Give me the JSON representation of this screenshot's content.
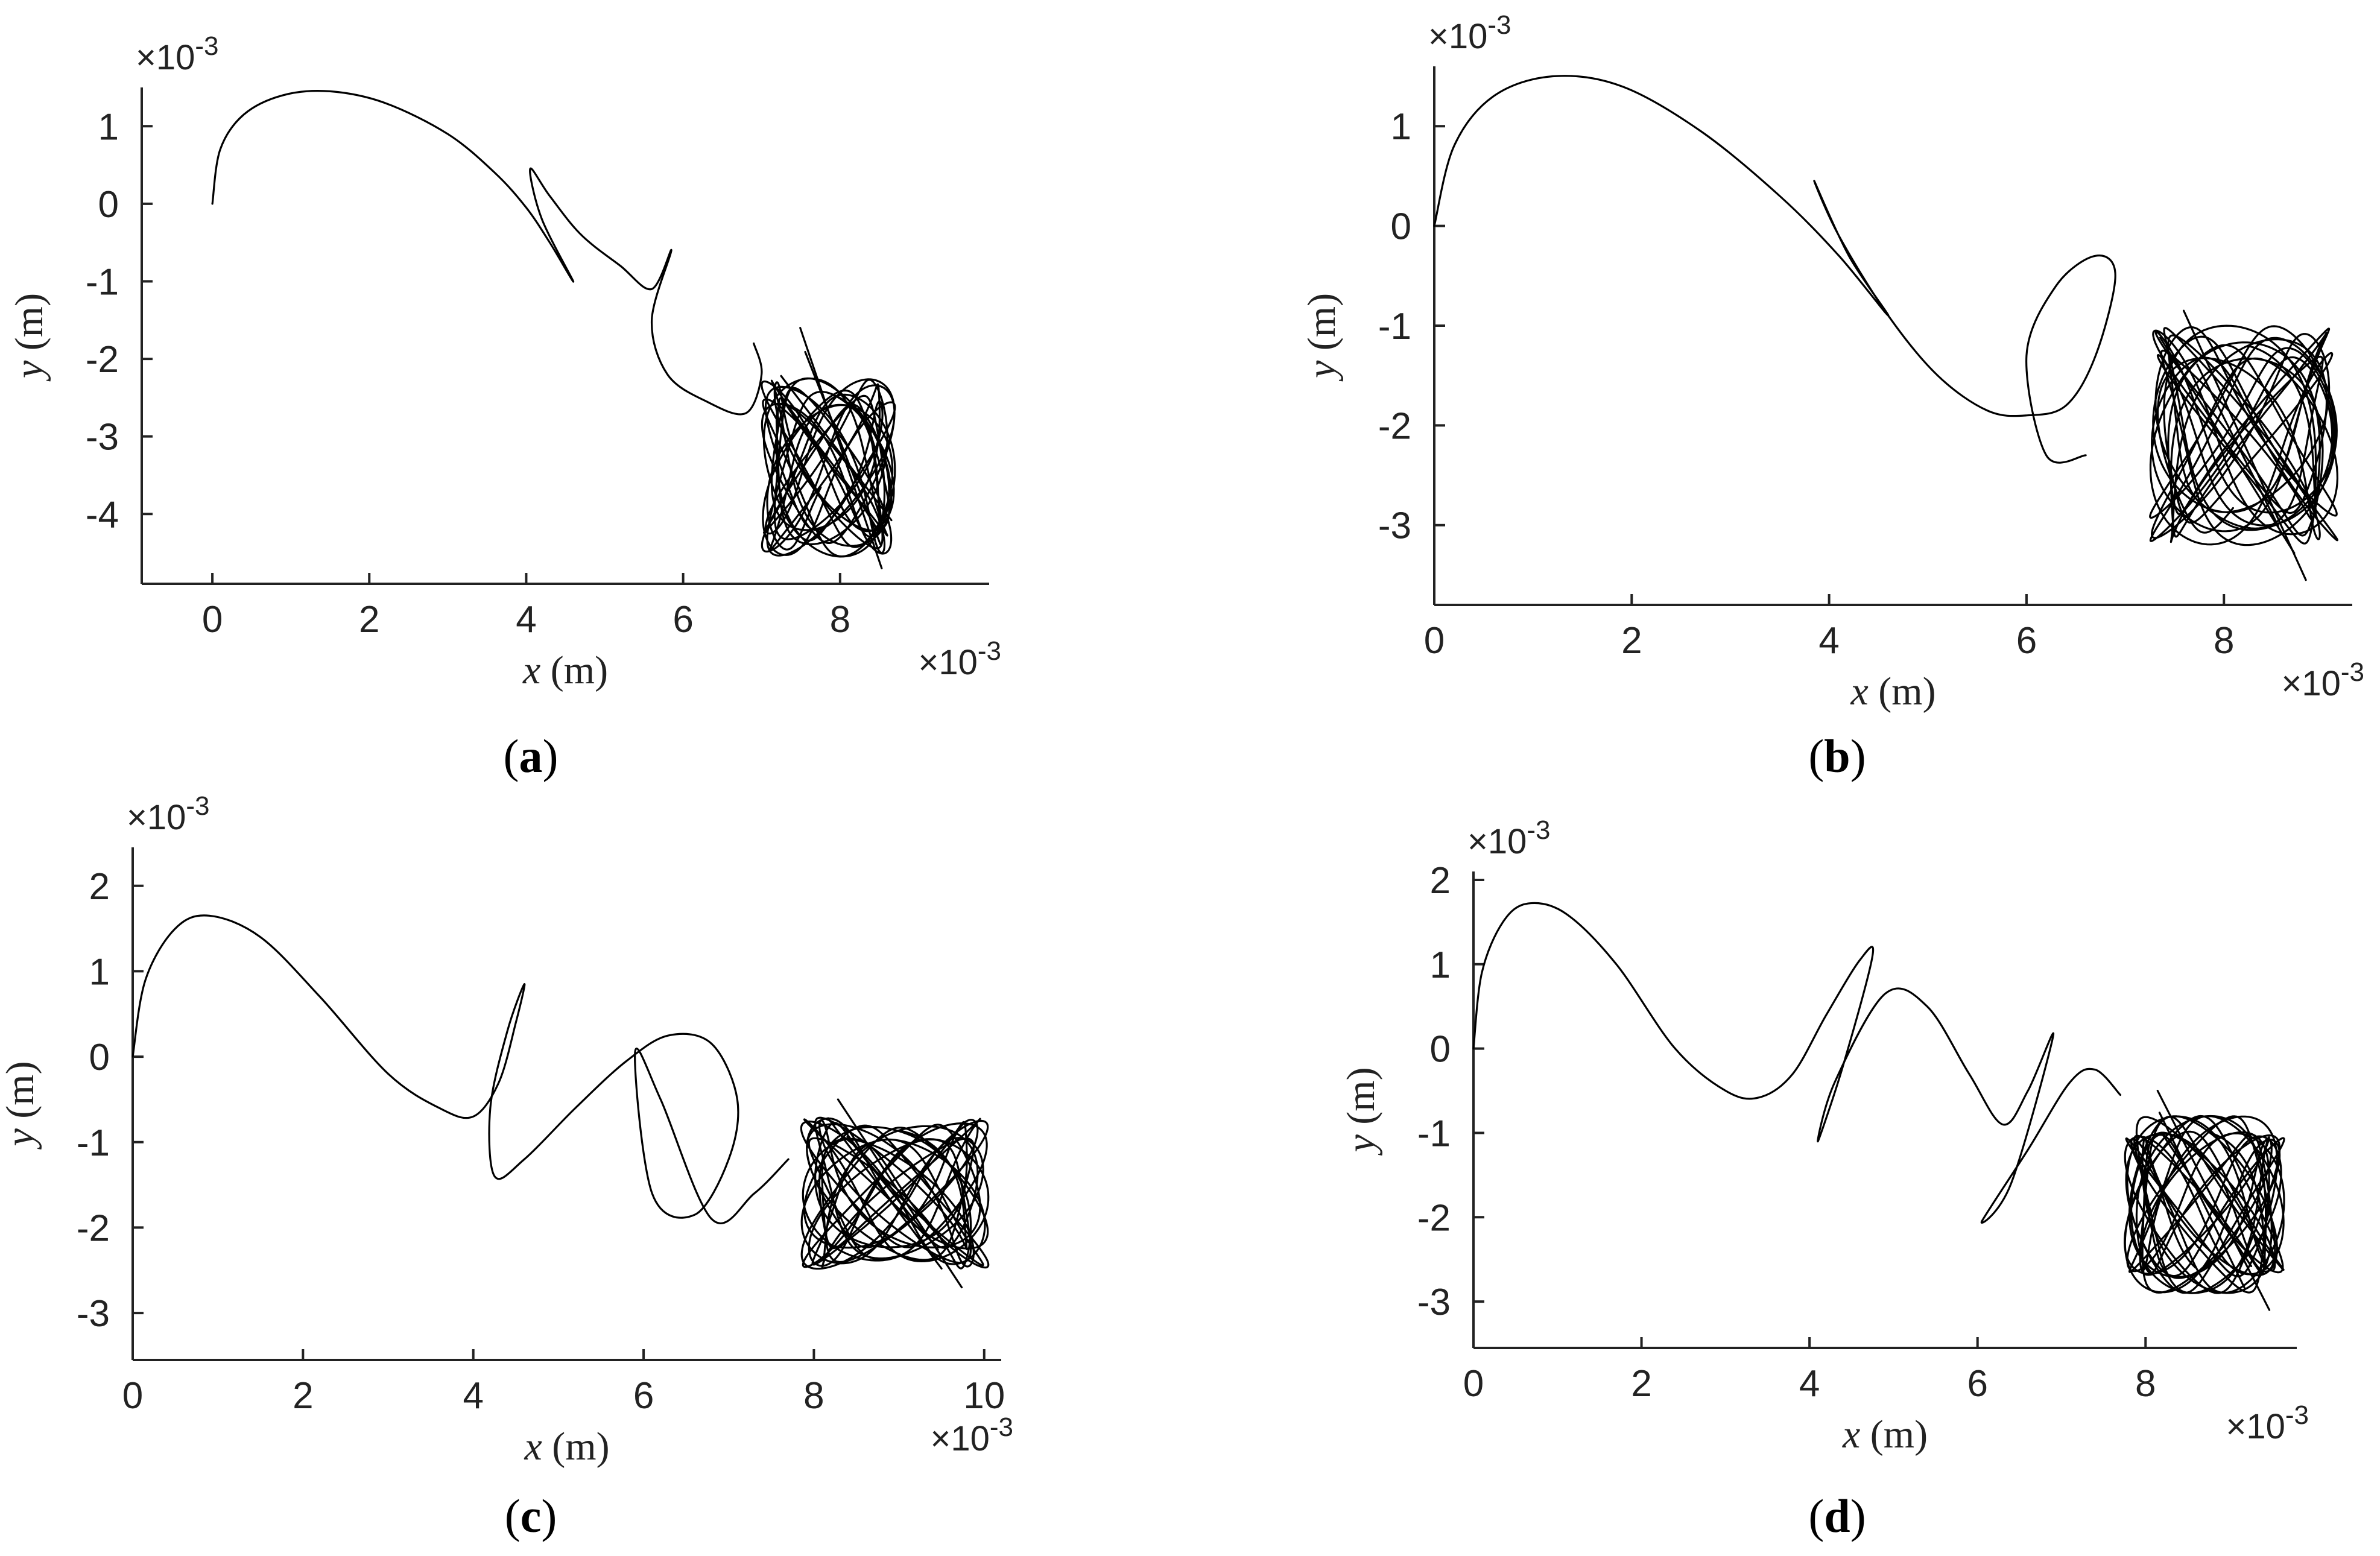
{
  "chart_data": [
    {
      "type": "line",
      "panel": "a",
      "caption_letter": "a",
      "xlabel_var": "x",
      "xlabel_unit": "(m)",
      "ylabel_var": "y",
      "ylabel_unit": "(m)",
      "x_exponent": "×10-3",
      "y_exponent": "×10-3",
      "x_scale": 0.001,
      "y_scale": 0.001,
      "xlim": [
        -0.9,
        9.9
      ],
      "ylim": [
        -4.9,
        1.5
      ],
      "xticks": [
        0,
        2,
        4,
        6,
        8
      ],
      "yticks": [
        1,
        0,
        -1,
        -2,
        -3,
        -4
      ],
      "series": [
        {
          "path_x": [
            0,
            0.1,
            0.4,
            0.9,
            1.5,
            2.2,
            3.0,
            3.6,
            4.0,
            4.3,
            4.6,
            4.2,
            4.05,
            4.3,
            4.7,
            5.2,
            5.6,
            5.85,
            5.6,
            5.8,
            6.3,
            6.8,
            7.0,
            6.9
          ],
          "path_y": [
            0,
            0.7,
            1.15,
            1.4,
            1.45,
            1.3,
            0.9,
            0.4,
            -0.05,
            -0.5,
            -1.0,
            -0.2,
            0.45,
            0.1,
            -0.4,
            -0.8,
            -1.1,
            -0.6,
            -1.5,
            -2.2,
            -2.55,
            -2.7,
            -2.2,
            -1.8
          ],
          "attractor": {
            "cx": 7.85,
            "cy": -3.4,
            "rx": 0.85,
            "ry": 1.15,
            "x_min": 6.9,
            "x_max": 8.9,
            "y_min": -4.7,
            "y_max": -1.6
          }
        }
      ]
    },
    {
      "type": "line",
      "panel": "b",
      "caption_letter": "b",
      "xlabel_var": "x",
      "xlabel_unit": "(m)",
      "ylabel_var": "y",
      "ylabel_unit": "(m)",
      "x_exponent": "×10-3",
      "y_exponent": "×10-3",
      "x_scale": 0.001,
      "y_scale": 0.001,
      "xlim": [
        0,
        9.3
      ],
      "ylim": [
        -3.8,
        1.6
      ],
      "xticks": [
        0,
        2,
        4,
        6,
        8
      ],
      "yticks": [
        1,
        0,
        -1,
        -2,
        -3
      ],
      "series": [
        {
          "path_x": [
            0,
            0.2,
            0.6,
            1.2,
            1.9,
            2.7,
            3.5,
            4.1,
            4.6,
            4.2,
            3.85,
            4.1,
            4.6,
            5.1,
            5.6,
            6.0,
            6.4,
            6.7,
            6.9,
            6.7,
            6.3,
            6.0,
            6.2,
            6.6
          ],
          "path_y": [
            0,
            0.8,
            1.3,
            1.5,
            1.4,
            0.95,
            0.3,
            -0.3,
            -0.9,
            -0.3,
            0.45,
            -0.1,
            -0.9,
            -1.5,
            -1.85,
            -1.9,
            -1.8,
            -1.3,
            -0.5,
            -0.3,
            -0.6,
            -1.3,
            -2.3,
            -2.3
          ],
          "attractor": {
            "cx": 8.2,
            "cy": -2.1,
            "rx": 0.95,
            "ry": 1.1,
            "x_min": 7.0,
            "x_max": 9.2,
            "y_min": -3.55,
            "y_max": -0.85
          }
        }
      ]
    },
    {
      "type": "line",
      "panel": "c",
      "caption_letter": "c",
      "xlabel_var": "x",
      "xlabel_unit": "(m)",
      "ylabel_var": "y",
      "ylabel_unit": "(m)",
      "x_exponent": "×10-3",
      "y_exponent": "×10-3",
      "x_scale": 0.001,
      "y_scale": 0.001,
      "xlim": [
        0,
        10.2
      ],
      "ylim": [
        -3.55,
        2.45
      ],
      "xticks": [
        0,
        2,
        4,
        6,
        8,
        10
      ],
      "yticks": [
        2,
        1,
        0,
        -1,
        -2,
        -3
      ],
      "series": [
        {
          "path_x": [
            0,
            0.15,
            0.5,
            0.9,
            1.5,
            2.2,
            3.0,
            3.6,
            4.0,
            4.3,
            4.5,
            4.6,
            4.4,
            4.2,
            4.25,
            4.6,
            5.2,
            5.8,
            6.3,
            6.8,
            7.1,
            7.0,
            6.6,
            6.1,
            5.9,
            6.2,
            6.8,
            7.3,
            7.7
          ],
          "path_y": [
            0,
            0.9,
            1.5,
            1.65,
            1.4,
            0.7,
            -0.2,
            -0.6,
            -0.7,
            -0.3,
            0.4,
            0.85,
            0.3,
            -0.6,
            -1.4,
            -1.2,
            -0.6,
            -0.05,
            0.25,
            0.15,
            -0.5,
            -1.2,
            -1.85,
            -1.6,
            0.05,
            -0.5,
            -1.9,
            -1.6,
            -1.2
          ],
          "attractor": {
            "cx": 8.95,
            "cy": -1.6,
            "rx": 1.1,
            "ry": 0.9,
            "x_min": 7.7,
            "x_max": 10.1,
            "y_min": -2.7,
            "y_max": -0.5
          }
        }
      ]
    },
    {
      "type": "line",
      "panel": "d",
      "caption_letter": "d",
      "xlabel_var": "x",
      "xlabel_unit": "(m)",
      "ylabel_var": "y",
      "ylabel_unit": "(m)",
      "x_exponent": "×10-3",
      "y_exponent": "×10-3",
      "x_scale": 0.001,
      "y_scale": 0.001,
      "xlim": [
        0,
        9.8
      ],
      "ylim": [
        -3.55,
        2.1
      ],
      "xticks": [
        0,
        2,
        4,
        6,
        8
      ],
      "yticks": [
        2,
        1,
        0,
        -1,
        -2,
        -3
      ],
      "series": [
        {
          "path_x": [
            0,
            0.1,
            0.35,
            0.65,
            1.1,
            1.7,
            2.4,
            3.0,
            3.4,
            3.8,
            4.2,
            4.6,
            4.75,
            4.4,
            4.1,
            4.3,
            4.9,
            5.4,
            5.9,
            6.3,
            6.6,
            6.9,
            6.4,
            6.05,
            6.6,
            7.1,
            7.4,
            7.7
          ],
          "path_y": [
            0,
            0.9,
            1.5,
            1.72,
            1.6,
            1.0,
            0.0,
            -0.5,
            -0.58,
            -0.3,
            0.4,
            1.05,
            1.1,
            -0.2,
            -1.1,
            -0.4,
            0.65,
            0.5,
            -0.3,
            -0.9,
            -0.5,
            0.15,
            -1.6,
            -2.05,
            -1.2,
            -0.4,
            -0.25,
            -0.55
          ],
          "attractor": {
            "cx": 8.7,
            "cy": -1.85,
            "rx": 0.95,
            "ry": 1.05,
            "x_min": 7.7,
            "x_max": 9.75,
            "y_min": -3.1,
            "y_max": -0.5
          }
        }
      ]
    }
  ]
}
